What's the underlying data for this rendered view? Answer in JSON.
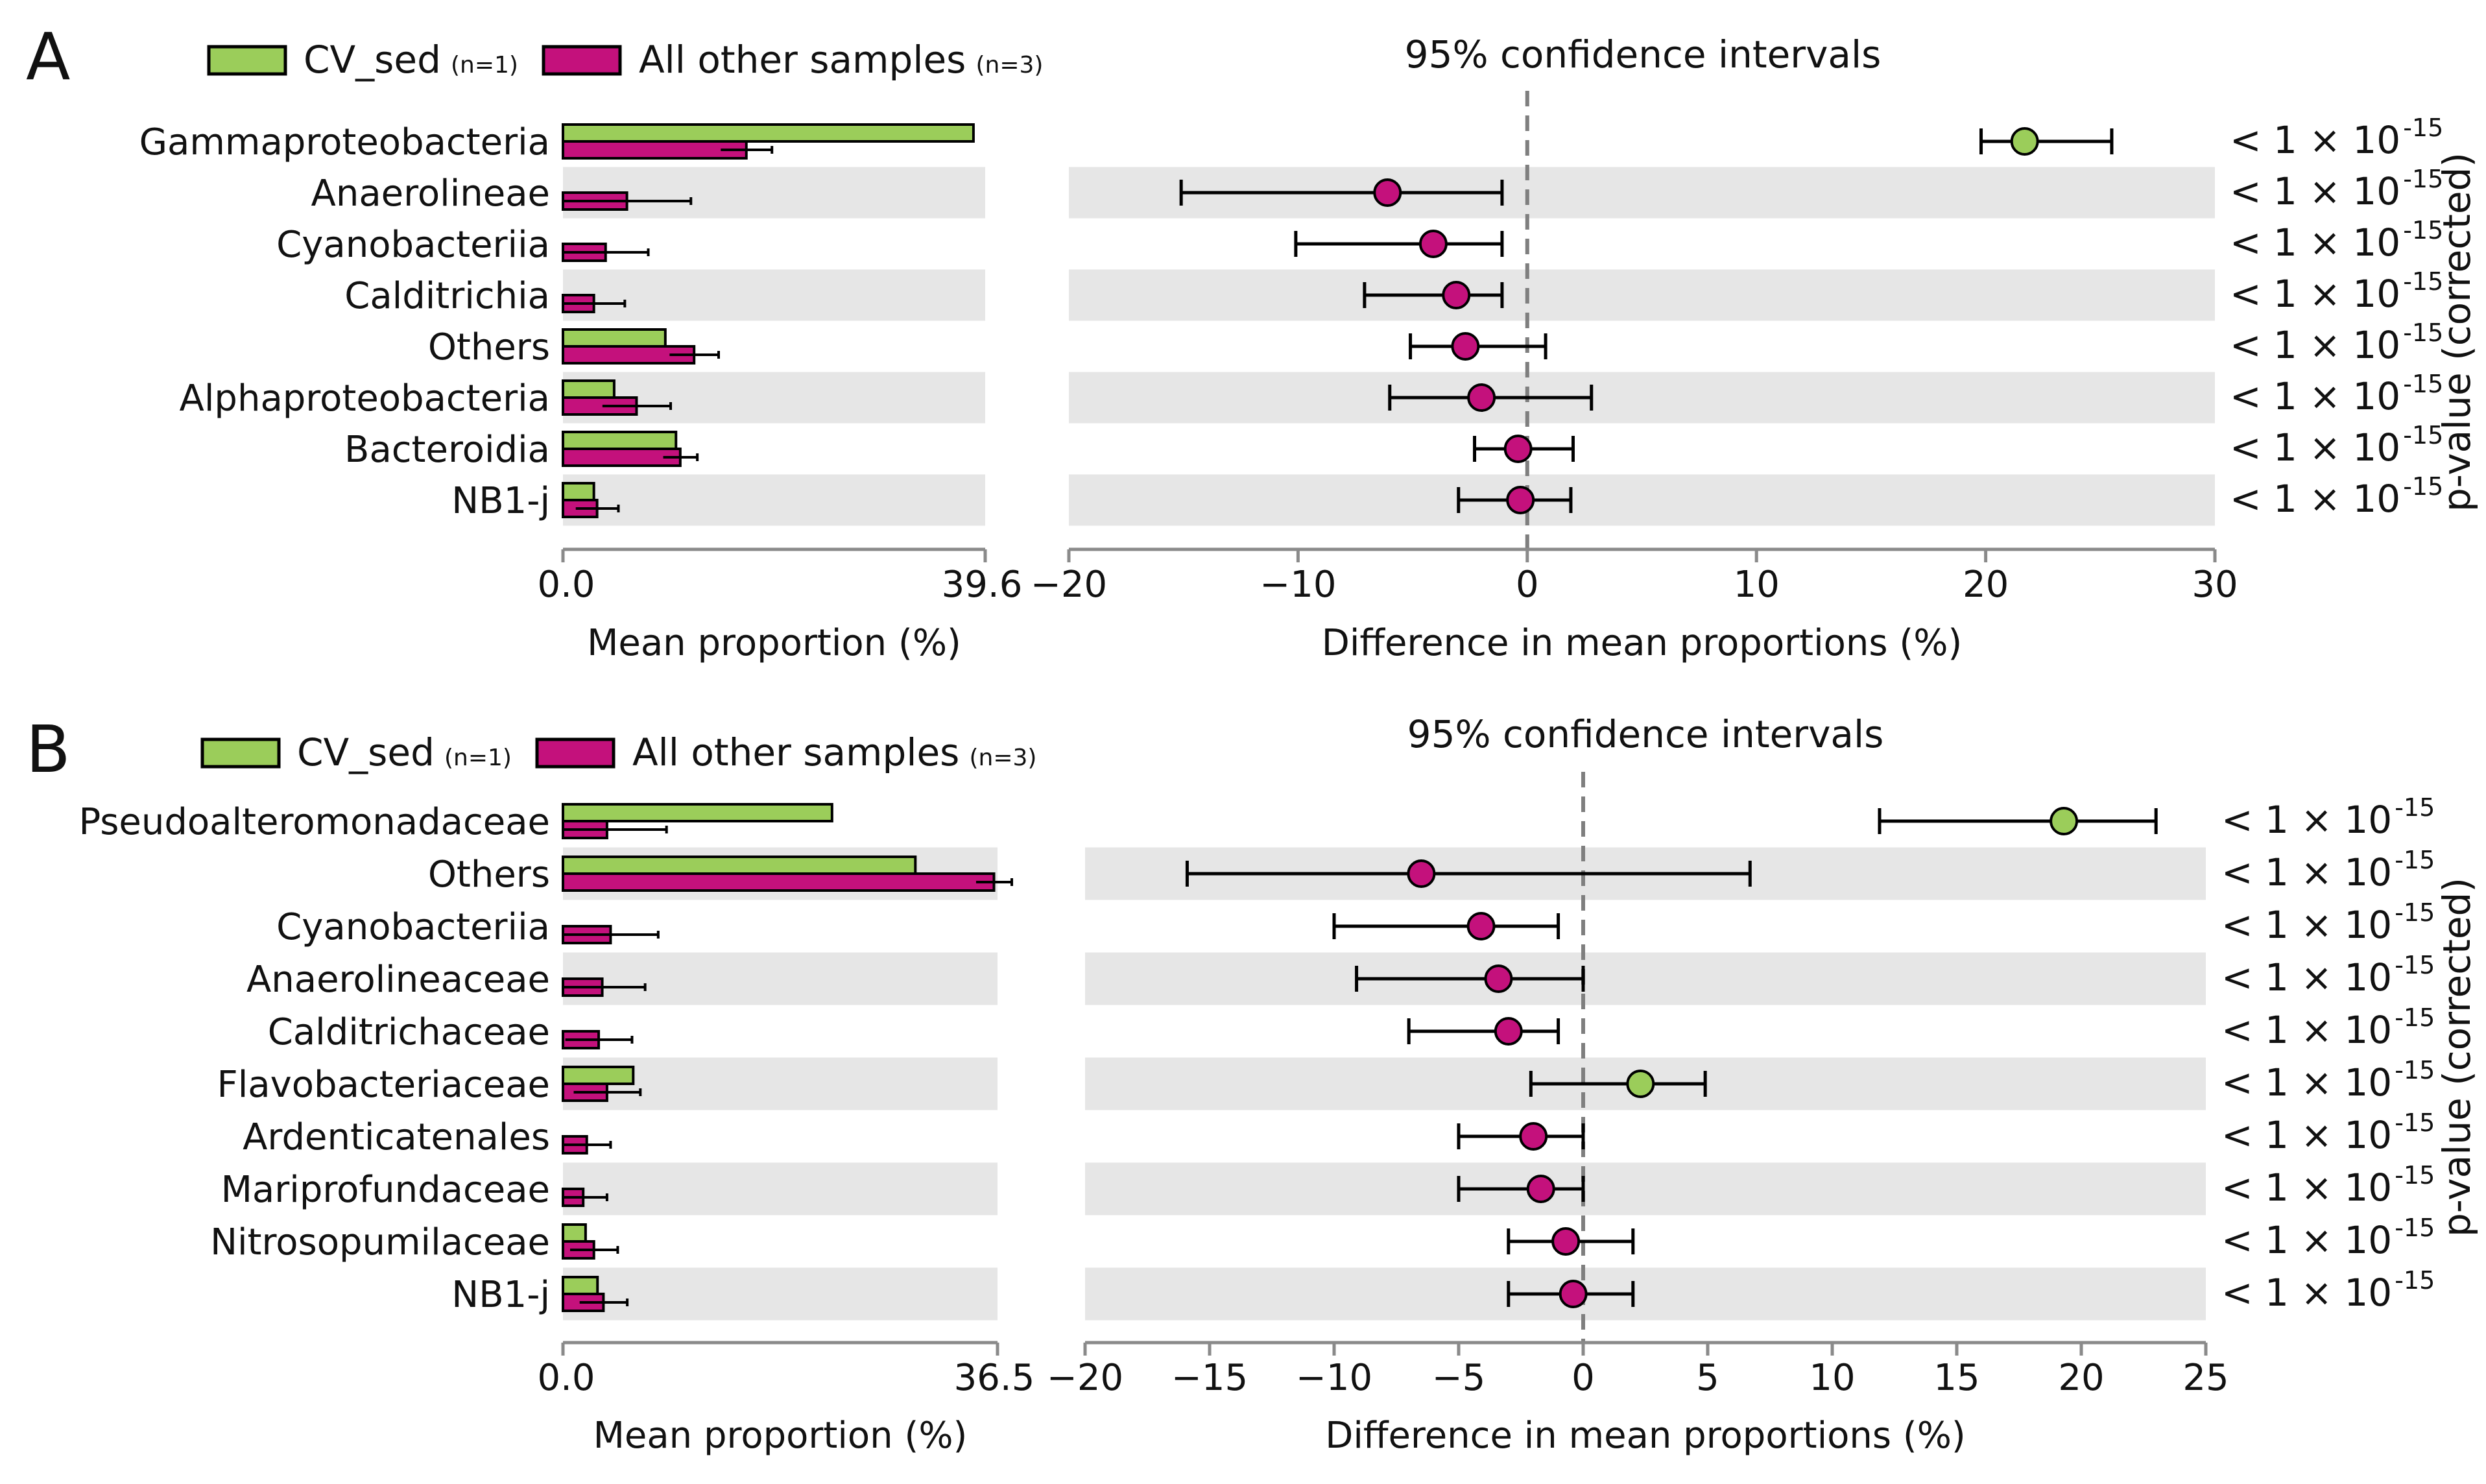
{
  "colors": {
    "group1": "#9bcd5a",
    "group2": "#c4117c",
    "stripe": "#e6e6e6",
    "axis": "#8a8a8a",
    "zero_line": "#7f7f7f"
  },
  "panels": [
    {
      "letter": "A",
      "legend": {
        "group1_name": "CV_sed",
        "group1_n": "(n=1)",
        "group2_name": "All other samples",
        "group2_n": "(n=3)"
      },
      "ci_title": "95% confidence intervals",
      "side_label": "p-value (corrected)",
      "bar_axis": {
        "label": "Mean proportion (%)",
        "min": 0,
        "max": 39.6,
        "min_label": "0.0",
        "max_label": "39.6"
      },
      "diff_axis": {
        "label": "Difference in mean proportions (%)",
        "min": -20,
        "max": 30,
        "ticks": [
          -20,
          -10,
          0,
          10,
          20,
          30
        ],
        "tick_labels": [
          "−20",
          "−10",
          "0",
          "10",
          "20",
          "30"
        ]
      },
      "chart_data": {
        "type": "bar",
        "title": "95% confidence intervals",
        "xlabel": "Mean proportion (%)",
        "categories": [
          "Gammaproteobacteria",
          "Anaerolineae",
          "Cyanobacteriia",
          "Calditrichia",
          "Others",
          "Alphaproteobacteria",
          "Bacteroidia",
          "NB1-j"
        ],
        "series": [
          {
            "name": "CV_sed",
            "values": [
              38.5,
              0,
              0,
              0,
              9.6,
              4.8,
              10.6,
              2.9
            ]
          },
          {
            "name": "All other samples",
            "values": [
              17.2,
              6.0,
              4.0,
              2.9,
              12.3,
              6.9,
              11.0,
              3.2
            ],
            "err": [
              2.4,
              6.0,
              4.0,
              2.9,
              2.3,
              3.2,
              1.6,
              2.0
            ]
          }
        ],
        "diff": {
          "xlabel": "Difference in mean proportions (%)",
          "xlim": [
            -20,
            30
          ],
          "estimates": [
            21.7,
            -6.1,
            -4.1,
            -3.1,
            -2.7,
            -2.0,
            -0.4,
            -0.3
          ],
          "lower": [
            19.8,
            -15.1,
            -10.1,
            -7.1,
            -5.1,
            -6.0,
            -2.3,
            -3.0
          ],
          "upper": [
            25.5,
            -1.1,
            -1.1,
            -1.1,
            0.8,
            2.8,
            2.0,
            1.9
          ],
          "favors": [
            "CV_sed",
            "All other samples",
            "All other samples",
            "All other samples",
            "All other samples",
            "All other samples",
            "All other samples",
            "All other samples"
          ]
        },
        "pvalues": [
          "< 1 × 10",
          "< 1 × 10",
          "< 1 × 10",
          "< 1 × 10",
          "< 1 × 10",
          "< 1 × 10",
          "< 1 × 10",
          "< 1 × 10"
        ],
        "pvalue_exponent": "-15"
      }
    },
    {
      "letter": "B",
      "legend": {
        "group1_name": "CV_sed",
        "group1_n": "(n=1)",
        "group2_name": "All other samples",
        "group2_n": "(n=3)"
      },
      "ci_title": "95% confidence intervals",
      "side_label": "p-value (corrected)",
      "bar_axis": {
        "label": "Mean proportion (%)",
        "min": 0,
        "max": 36.5,
        "min_label": "0.0",
        "max_label": "36.5"
      },
      "diff_axis": {
        "label": "Difference in mean proportions (%)",
        "min": -20,
        "max": 25,
        "ticks": [
          -20,
          -15,
          -10,
          -5,
          0,
          5,
          10,
          15,
          20,
          25
        ],
        "tick_labels": [
          "−20",
          "−15",
          "−10",
          "−5",
          "0",
          "5",
          "10",
          "15",
          "20",
          "25"
        ]
      },
      "chart_data": {
        "type": "bar",
        "title": "95% confidence intervals",
        "xlabel": "Mean proportion (%)",
        "categories": [
          "Pseudoalteromonadaceae",
          "Others",
          "Cyanobacteriia",
          "Anaerolineaceae",
          "Calditrichaceae",
          "Flavobacteriaceae",
          "Ardenticatenales",
          "Mariprofundaceae",
          "Nitrosopumilaceae",
          "NB1-j"
        ],
        "series": [
          {
            "name": "CV_sed",
            "values": [
              22.6,
              29.6,
              0,
              0,
              0,
              5.9,
              0,
              0,
              1.9,
              2.9
            ]
          },
          {
            "name": "All other samples",
            "values": [
              3.7,
              36.2,
              4.0,
              3.3,
              3.0,
              3.7,
              2.0,
              1.7,
              2.6,
              3.4
            ],
            "err": [
              5.0,
              1.5,
              4.0,
              3.6,
              2.8,
              2.8,
              2.0,
              2.0,
              2.0,
              2.0
            ]
          }
        ],
        "diff": {
          "xlabel": "Difference in mean proportions (%)",
          "xlim": [
            -20,
            25
          ],
          "estimates": [
            19.3,
            -6.5,
            -4.1,
            -3.4,
            -3.0,
            2.3,
            -2.0,
            -1.7,
            -0.7,
            -0.4
          ],
          "lower": [
            11.9,
            -15.9,
            -10.0,
            -9.1,
            -7.0,
            -2.1,
            -5.0,
            -5.0,
            -3.0,
            -3.0
          ],
          "upper": [
            23.0,
            6.7,
            -1.0,
            0.0,
            -1.0,
            4.9,
            0.0,
            0.0,
            2.0,
            2.0
          ],
          "favors": [
            "CV_sed",
            "All other samples",
            "All other samples",
            "All other samples",
            "All other samples",
            "CV_sed",
            "All other samples",
            "All other samples",
            "All other samples",
            "All other samples"
          ]
        },
        "pvalues": [
          "< 1 × 10",
          "< 1 × 10",
          "< 1 × 10",
          "< 1 × 10",
          "< 1 × 10",
          "< 1 × 10",
          "< 1 × 10",
          "< 1 × 10",
          "< 1 × 10",
          "< 1 × 10"
        ],
        "pvalue_exponent": "-15"
      }
    }
  ]
}
